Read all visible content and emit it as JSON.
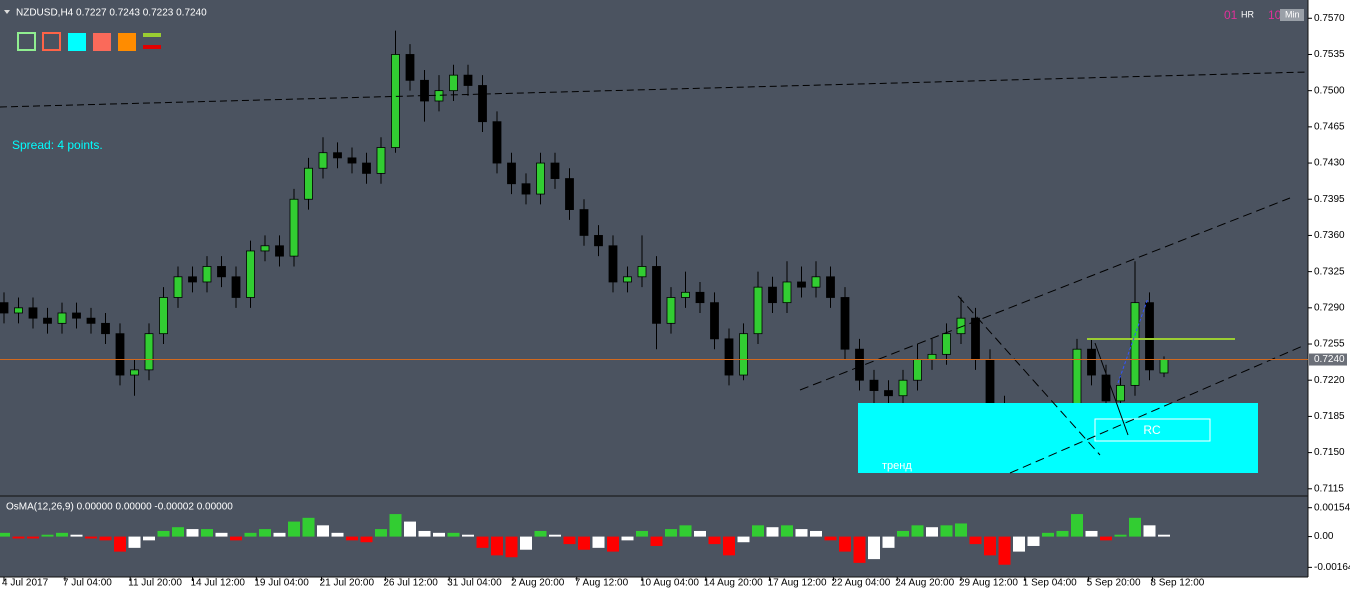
{
  "chart_data": [
    {
      "type": "candlestick",
      "title": "NZDUSD,H4  0.7227 0.7243 0.7223 0.7240",
      "open": [
        0.7295,
        0.7285,
        0.729,
        0.728,
        0.7275,
        0.7285,
        0.728,
        0.7275,
        0.7265,
        0.7225,
        0.723,
        0.7265,
        0.73,
        0.732,
        0.7315,
        0.733,
        0.732,
        0.73,
        0.7345,
        0.735,
        0.734,
        0.7395,
        0.7425,
        0.744,
        0.7435,
        0.743,
        0.742,
        0.7445,
        0.7535,
        0.751,
        0.749,
        0.75,
        0.7515,
        0.7505,
        0.747,
        0.743,
        0.741,
        0.74,
        0.743,
        0.7415,
        0.7385,
        0.736,
        0.735,
        0.7315,
        0.732,
        0.733,
        0.7275,
        0.73,
        0.7305,
        0.7295,
        0.726,
        0.7225,
        0.7265,
        0.731,
        0.7295,
        0.7315,
        0.731,
        0.732,
        0.73,
        0.725,
        0.722,
        0.721,
        0.7205,
        0.722,
        0.724,
        0.7245,
        0.7265,
        0.728,
        0.724,
        0.7195,
        0.7155,
        0.717,
        0.716,
        0.7175,
        0.718,
        0.725,
        0.7225,
        0.72,
        0.7215,
        0.7295,
        0.7227
      ],
      "high": [
        0.7305,
        0.73,
        0.73,
        0.729,
        0.7295,
        0.7295,
        0.729,
        0.7285,
        0.7275,
        0.724,
        0.7275,
        0.731,
        0.733,
        0.733,
        0.734,
        0.734,
        0.733,
        0.7355,
        0.736,
        0.736,
        0.7405,
        0.7435,
        0.7455,
        0.745,
        0.7445,
        0.744,
        0.7455,
        0.7558,
        0.7545,
        0.752,
        0.7515,
        0.7525,
        0.7525,
        0.7515,
        0.748,
        0.744,
        0.742,
        0.744,
        0.744,
        0.7425,
        0.7395,
        0.737,
        0.736,
        0.733,
        0.736,
        0.734,
        0.731,
        0.7325,
        0.7315,
        0.7305,
        0.727,
        0.7275,
        0.7325,
        0.732,
        0.7335,
        0.733,
        0.7335,
        0.733,
        0.731,
        0.726,
        0.723,
        0.722,
        0.723,
        0.7255,
        0.726,
        0.7275,
        0.73,
        0.729,
        0.725,
        0.7205,
        0.7195,
        0.718,
        0.7185,
        0.719,
        0.726,
        0.726,
        0.7235,
        0.7225,
        0.7335,
        0.7305,
        0.7243
      ],
      "low": [
        0.7275,
        0.7275,
        0.727,
        0.7265,
        0.7265,
        0.727,
        0.7265,
        0.7255,
        0.7215,
        0.7205,
        0.722,
        0.7255,
        0.729,
        0.7305,
        0.7305,
        0.731,
        0.729,
        0.729,
        0.7335,
        0.733,
        0.733,
        0.7385,
        0.7415,
        0.7425,
        0.742,
        0.741,
        0.741,
        0.744,
        0.75,
        0.747,
        0.748,
        0.749,
        0.7495,
        0.746,
        0.742,
        0.74,
        0.739,
        0.739,
        0.7405,
        0.7375,
        0.735,
        0.734,
        0.7305,
        0.7305,
        0.731,
        0.725,
        0.7265,
        0.729,
        0.7285,
        0.725,
        0.7215,
        0.722,
        0.7255,
        0.7285,
        0.7285,
        0.73,
        0.73,
        0.729,
        0.724,
        0.721,
        0.7195,
        0.7195,
        0.7195,
        0.721,
        0.723,
        0.7235,
        0.7255,
        0.723,
        0.7185,
        0.7135,
        0.714,
        0.715,
        0.715,
        0.7165,
        0.717,
        0.7215,
        0.7185,
        0.719,
        0.7205,
        0.722,
        0.7223
      ],
      "close": [
        0.7285,
        0.729,
        0.728,
        0.7275,
        0.7285,
        0.728,
        0.7275,
        0.7265,
        0.7225,
        0.723,
        0.7265,
        0.73,
        0.732,
        0.7315,
        0.733,
        0.732,
        0.73,
        0.7345,
        0.735,
        0.734,
        0.7395,
        0.7425,
        0.744,
        0.7435,
        0.743,
        0.742,
        0.7445,
        0.7535,
        0.751,
        0.749,
        0.75,
        0.7515,
        0.7505,
        0.747,
        0.743,
        0.741,
        0.74,
        0.743,
        0.7415,
        0.7385,
        0.736,
        0.735,
        0.7315,
        0.732,
        0.733,
        0.7275,
        0.73,
        0.7305,
        0.7295,
        0.726,
        0.7225,
        0.7265,
        0.731,
        0.7295,
        0.7315,
        0.731,
        0.732,
        0.73,
        0.725,
        0.722,
        0.721,
        0.7205,
        0.722,
        0.724,
        0.7245,
        0.7265,
        0.728,
        0.724,
        0.7195,
        0.7155,
        0.717,
        0.716,
        0.7175,
        0.718,
        0.725,
        0.7225,
        0.72,
        0.7215,
        0.7295,
        0.723,
        0.724
      ],
      "up_color": "#32cd32",
      "down_color": "#000000",
      "ylim": [
        0.7109,
        0.7578
      ],
      "yticks": [
        {
          "value": 0.757,
          "label": "0.7570"
        },
        0.7535,
        {
          "value": 0.75,
          "label": "0.7500"
        },
        0.7465,
        {
          "value": 0.743,
          "label": "0.7430"
        },
        0.7395,
        {
          "value": 0.736,
          "label": "0.7360"
        },
        0.7325,
        {
          "value": 0.729,
          "label": "0.7290"
        },
        0.7255,
        {
          "value": 0.722,
          "label": "0.7220"
        },
        0.7185,
        {
          "value": 0.715,
          "label": "0.7150"
        },
        0.7115
      ],
      "bid": {
        "value": 0.724,
        "label": "0.7240"
      },
      "bid_color": "#d2691e",
      "xticks": [
        {
          "value": 0,
          "label": "4 Jul 2017"
        },
        {
          "value": 4.2,
          "label": "7 Jul 04:00"
        },
        {
          "value": 8.7,
          "label": "11 Jul 20:00"
        },
        {
          "value": 13,
          "label": "14 Jul 12:00"
        },
        {
          "value": 17.4,
          "label": "19 Jul 04:00"
        },
        {
          "value": 21.9,
          "label": "21 Jul 20:00"
        },
        {
          "value": 26.3,
          "label": "26 Jul 12:00"
        },
        {
          "value": 30.7,
          "label": "31 Jul 04:00"
        },
        {
          "value": 35.1,
          "label": "2 Aug 20:00"
        },
        {
          "value": 39.5,
          "label": "7 Aug 12:00"
        },
        {
          "value": 44,
          "label": "10 Aug 04:00"
        },
        {
          "value": 48.4,
          "label": "14 Aug 20:00"
        },
        {
          "value": 52.8,
          "label": "17 Aug 12:00"
        },
        {
          "value": 57.2,
          "label": "22 Aug 04:00"
        },
        {
          "value": 61.6,
          "label": "24 Aug 20:00"
        },
        {
          "value": 66,
          "label": "29 Aug 12:00"
        },
        {
          "value": 70.4,
          "label": "1 Sep 04:00"
        },
        {
          "value": 74.8,
          "label": "5 Sep 20:00"
        },
        {
          "value": 79.2,
          "label": "8 Sep 12:00"
        }
      ],
      "annotations": {
        "spread": "Spread: 4 points.",
        "trend": "тренд",
        "rc": "RC"
      },
      "timer": {
        "hours": "01",
        "hours_unit": "HR",
        "minutes": "10",
        "minutes_unit": "Min"
      }
    },
    {
      "type": "histogram",
      "title": "OsMA(12,26,9) 0.00000 0.00000 -0.00002 0.00000",
      "values": [
        0.0002,
        -0.0001,
        -0.0001,
        0.0001,
        0.0002,
        0.0001,
        -0.0001,
        -0.0002,
        -0.0008,
        -0.0006,
        -0.0002,
        0.0003,
        0.0005,
        0.0004,
        0.0004,
        0.0002,
        -0.0002,
        0.0002,
        0.0004,
        0.0002,
        0.0008,
        0.001,
        0.0006,
        0.0002,
        -0.0002,
        -0.0003,
        0.0004,
        0.0012,
        0.0008,
        0.0003,
        0.0002,
        0.0002,
        0.0001,
        -0.0006,
        -0.001,
        -0.0011,
        -0.0007,
        0.0003,
        0.0001,
        -0.0004,
        -0.0007,
        -0.0006,
        -0.0008,
        -0.0002,
        0.0003,
        -0.0005,
        0.0004,
        0.0006,
        0.0003,
        -0.0004,
        -0.001,
        -0.0003,
        0.0006,
        0.0005,
        0.0006,
        0.0004,
        0.0003,
        -0.0002,
        -0.0008,
        -0.0014,
        -0.0012,
        -0.0006,
        0.0003,
        0.0006,
        0.0005,
        0.0006,
        0.0007,
        -0.0004,
        -0.001,
        -0.0015,
        -0.0008,
        -0.0005,
        0.0002,
        0.0003,
        0.0012,
        0.0003,
        -0.0002,
        0.0001,
        0.001,
        0.0006,
        0.0001
      ],
      "color_up": "#32cd32",
      "color_down": "#ff0000",
      "color_turn": "#ffffff",
      "ylim": [
        -0.0021,
        0.00195
      ],
      "yticks": [
        0.00154,
        {
          "value": 0,
          "label": "0.00"
        },
        -0.00164
      ]
    }
  ]
}
